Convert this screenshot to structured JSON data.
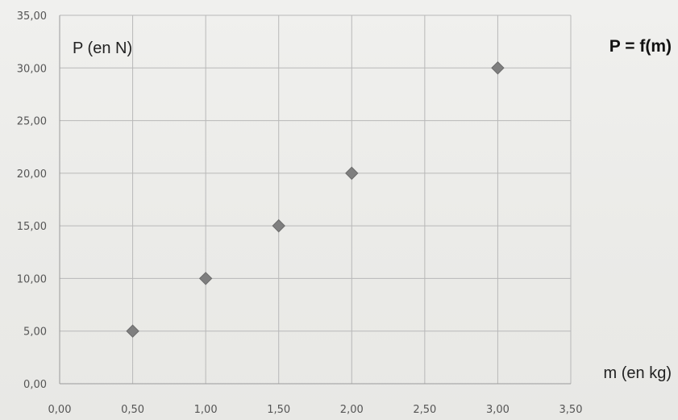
{
  "chart_data": {
    "type": "scatter",
    "title": "P = f(m)",
    "ylabel": "P (en N)",
    "xlabel": "m (en kg)",
    "xlim": [
      0,
      3.5
    ],
    "ylim": [
      0,
      35
    ],
    "x_ticks": [
      "0,00",
      "0,50",
      "1,00",
      "1,50",
      "2,00",
      "2,50",
      "3,00",
      "3,50"
    ],
    "y_ticks": [
      "0,00",
      "5,00",
      "10,00",
      "15,00",
      "20,00",
      "25,00",
      "30,00",
      "35,00"
    ],
    "grid": true,
    "marker": "diamond",
    "colors": {
      "marker": "#7f7f7f",
      "grid": "#b8b8b8",
      "text": "#222222"
    },
    "series": [
      {
        "x": [
          0.5,
          1.0,
          1.5,
          2.0,
          3.0
        ],
        "y": [
          5.0,
          10.0,
          15.0,
          20.0,
          30.0
        ]
      }
    ]
  }
}
